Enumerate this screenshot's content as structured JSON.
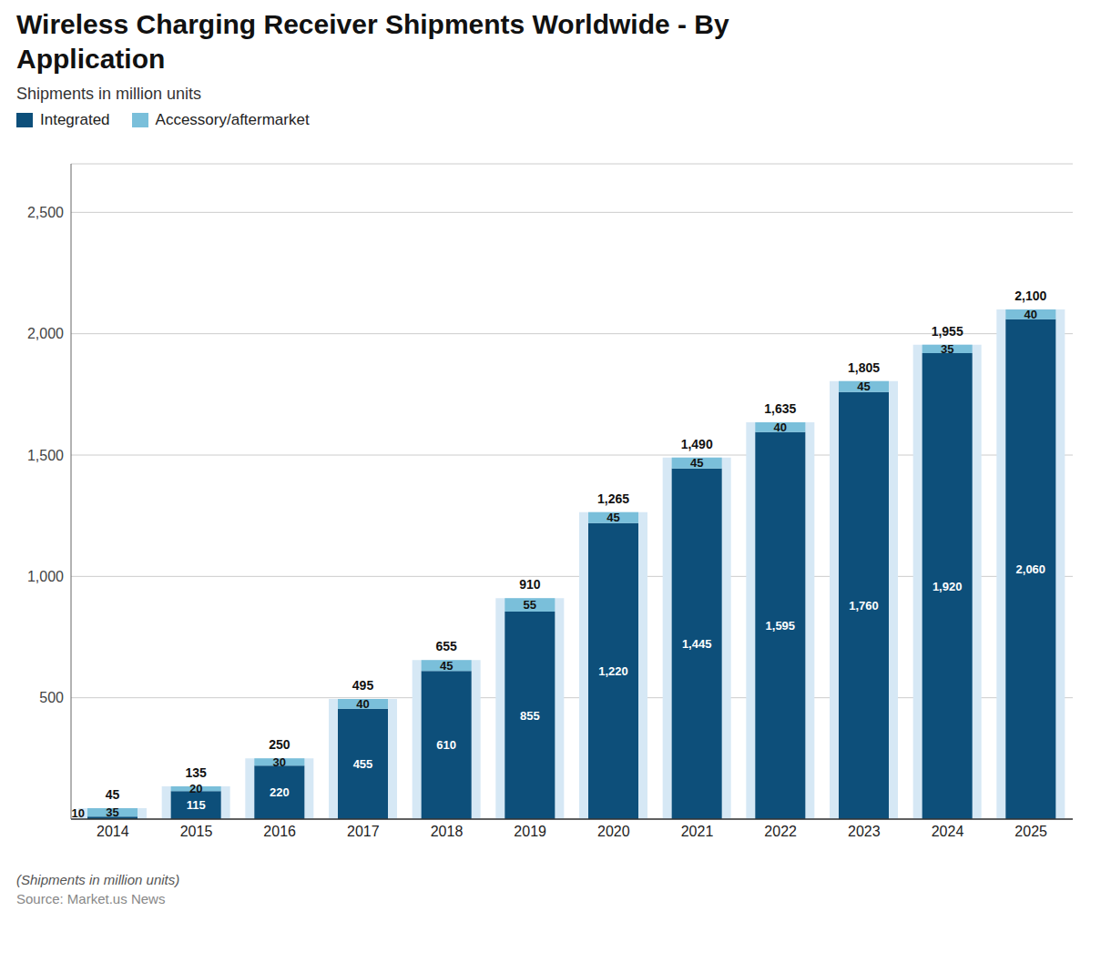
{
  "chart_data": {
    "type": "bar",
    "title": "Wireless Charging Receiver Shipments Worldwide - By\nApplication",
    "subtitle": "Shipments in million units",
    "footnote": "(Shipments in million units)",
    "source": "Source: Market.us News",
    "categories": [
      "2014",
      "2015",
      "2016",
      "2017",
      "2018",
      "2019",
      "2020",
      "2021",
      "2022",
      "2023",
      "2024",
      "2025"
    ],
    "series": [
      {
        "name": "Integrated",
        "color": "#0d4f7a",
        "values": [
          10,
          115,
          220,
          455,
          610,
          855,
          1220,
          1445,
          1595,
          1760,
          1920,
          2060
        ],
        "value_labels": [
          "10",
          "115",
          "220",
          "455",
          "610",
          "855",
          "1,220",
          "1,445",
          "1,595",
          "1,760",
          "1,920",
          "2,060"
        ]
      },
      {
        "name": "Accessory/aftermarket",
        "color": "#7abfda",
        "values": [
          35,
          20,
          30,
          40,
          45,
          55,
          45,
          45,
          40,
          45,
          35,
          40
        ]
      }
    ],
    "totals": {
      "values": [
        45,
        135,
        250,
        495,
        655,
        910,
        1265,
        1490,
        1635,
        1805,
        1955,
        2100
      ],
      "value_labels": [
        "45",
        "135",
        "250",
        "495",
        "655",
        "910",
        "1,265",
        "1,490",
        "1,635",
        "1,805",
        "1,955",
        "2,100"
      ],
      "color": "#d6e8f5"
    },
    "ylim": [
      0,
      2700
    ],
    "yticks": [
      500,
      {
        "value": 1000,
        "label": "1,000"
      },
      {
        "value": 1500,
        "label": "1,500"
      },
      {
        "value": 2000,
        "label": "2,000"
      },
      {
        "value": 2500,
        "label": "2,500"
      }
    ],
    "grid": true,
    "stacked": true,
    "legend": "upper left",
    "data_labels": true
  }
}
